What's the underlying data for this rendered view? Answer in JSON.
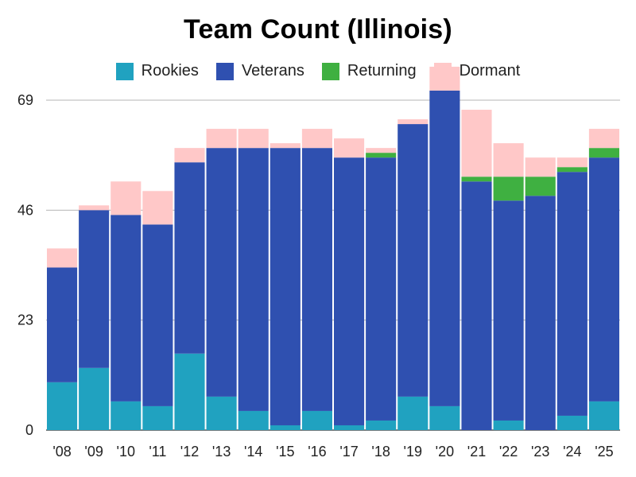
{
  "chart_data": {
    "type": "bar",
    "stacked": true,
    "title": "Team Count (Illinois)",
    "xlabel": "",
    "ylabel": "",
    "ylim": [
      0,
      69
    ],
    "yticks": [
      "0",
      "23",
      "46",
      "69"
    ],
    "grid": "horizontal",
    "legend_position": "top",
    "categories": [
      "'08",
      "'09",
      "'10",
      "'11",
      "'12",
      "'13",
      "'14",
      "'15",
      "'16",
      "'17",
      "'18",
      "'19",
      "'20",
      "'21",
      "'22",
      "'23",
      "'24",
      "'25"
    ],
    "series": [
      {
        "name": "Rookies",
        "color": "#20a2c0",
        "values": [
          10,
          13,
          6,
          5,
          16,
          7,
          4,
          1,
          4,
          1,
          2,
          7,
          5,
          0,
          2,
          0,
          3,
          6
        ]
      },
      {
        "name": "Veterans",
        "color": "#2f50b0",
        "values": [
          24,
          33,
          39,
          38,
          40,
          52,
          55,
          58,
          55,
          56,
          55,
          57,
          66,
          52,
          46,
          49,
          51,
          51
        ]
      },
      {
        "name": "Returning",
        "color": "#3fb041",
        "values": [
          0,
          0,
          0,
          0,
          0,
          0,
          0,
          0,
          0,
          0,
          1,
          0,
          0,
          1,
          5,
          4,
          1,
          2
        ]
      },
      {
        "name": "Dormant",
        "color": "#ffc8c8",
        "values": [
          4,
          1,
          7,
          7,
          3,
          4,
          4,
          1,
          4,
          4,
          1,
          1,
          5,
          14,
          7,
          4,
          2,
          4
        ]
      }
    ]
  }
}
